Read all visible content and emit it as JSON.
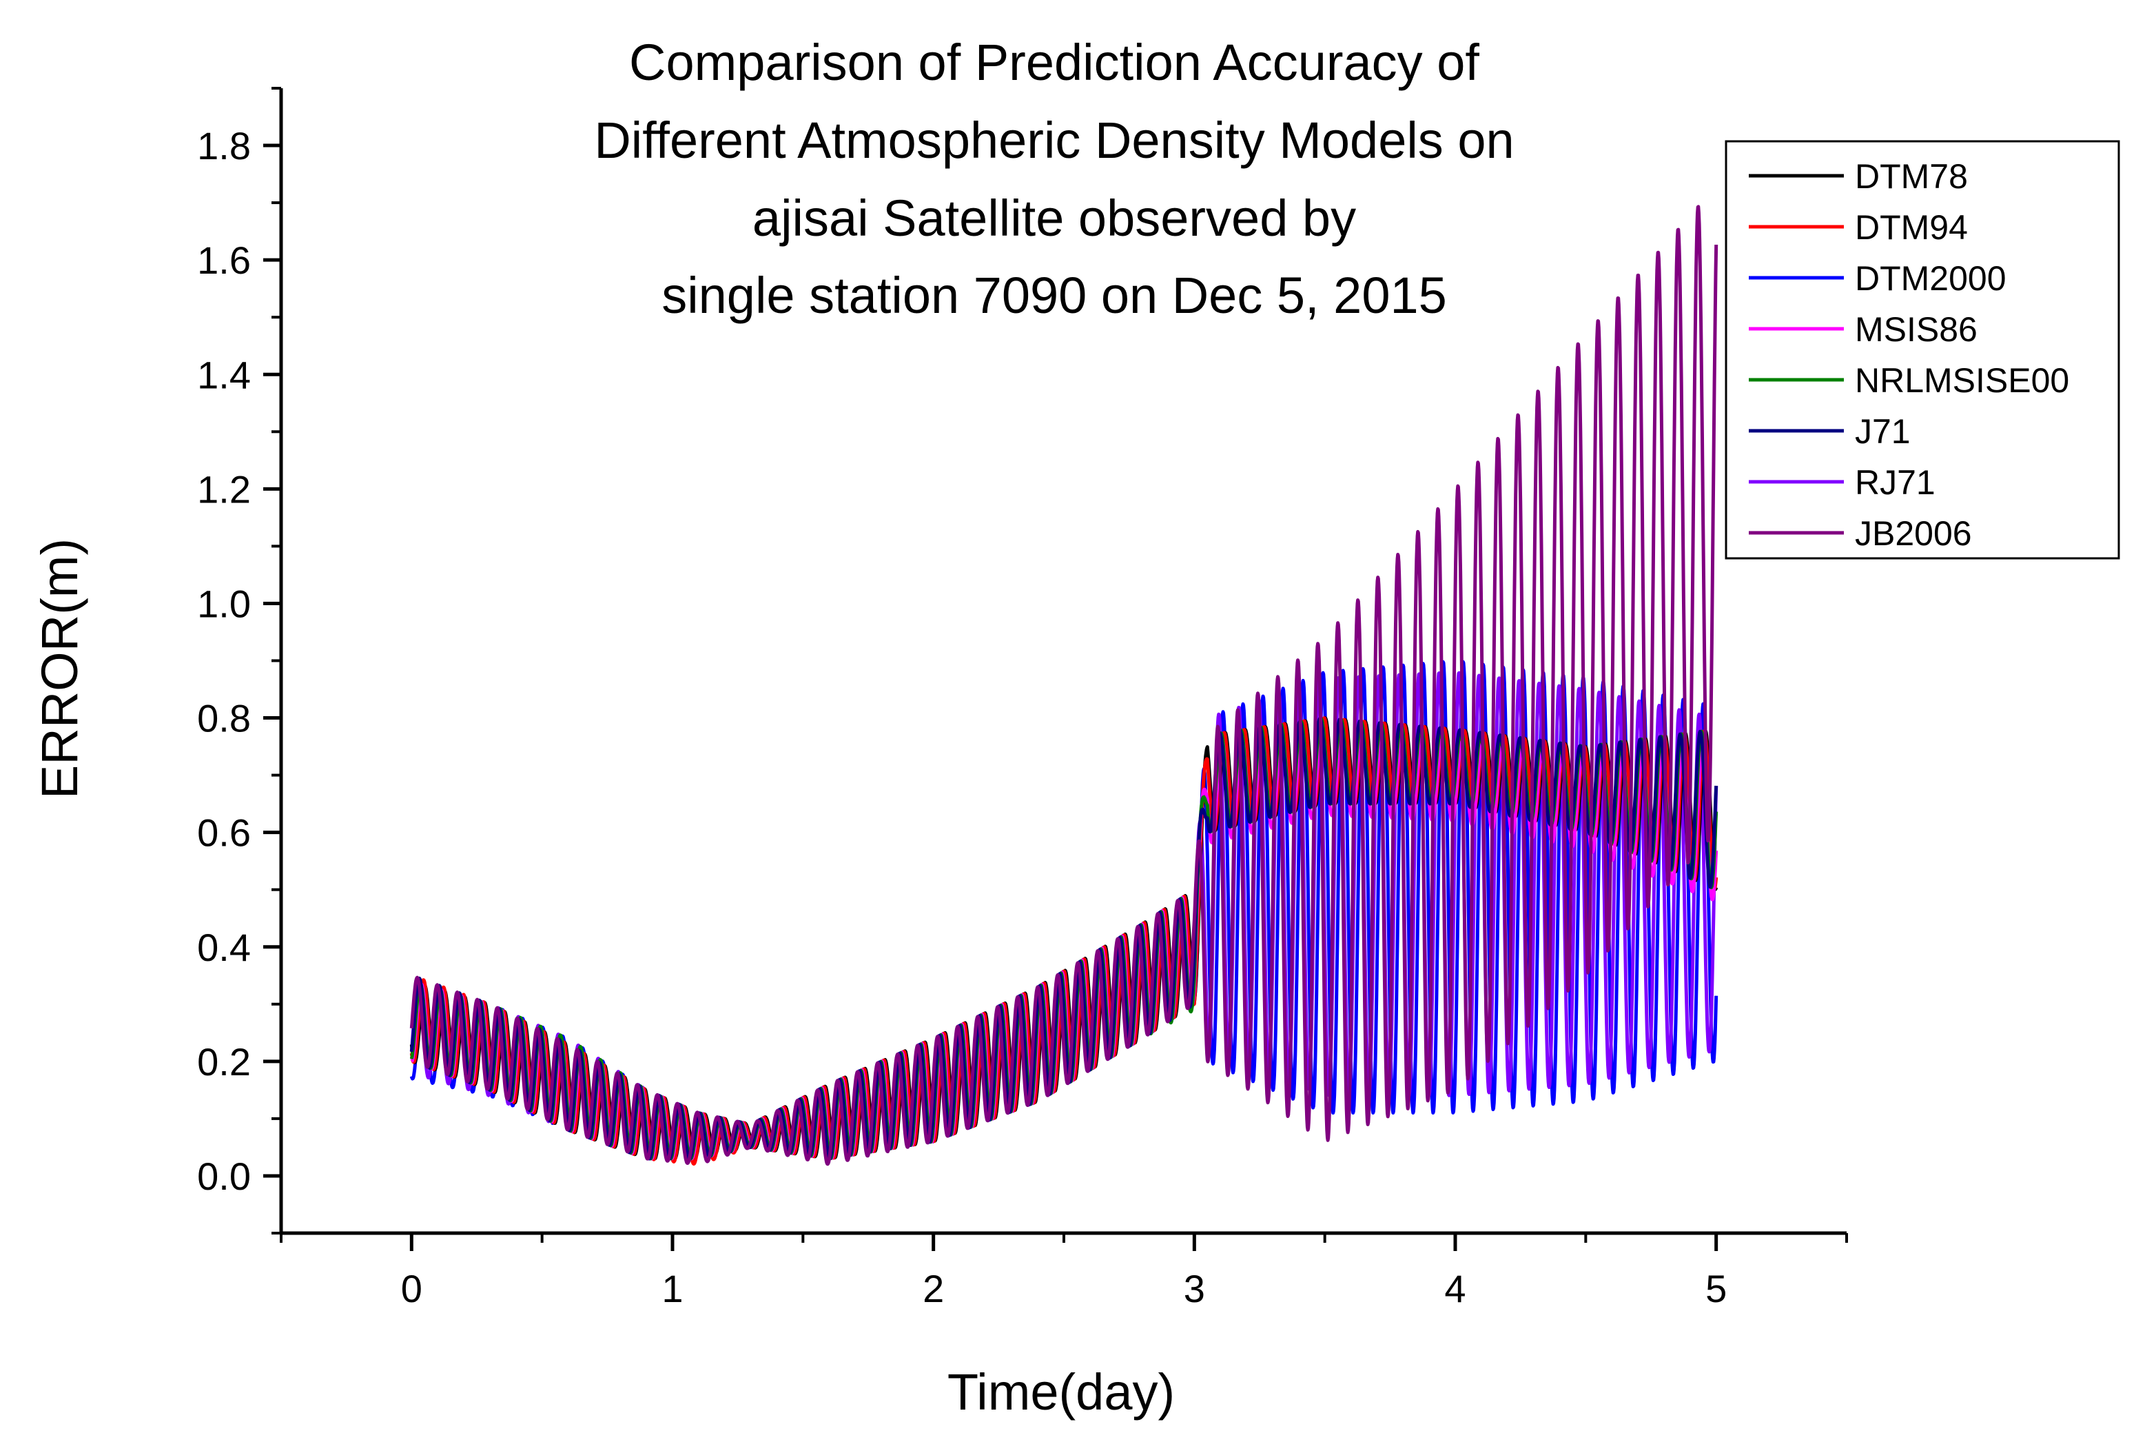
{
  "chart_data": {
    "type": "line",
    "title_lines": [
      "Comparison of Prediction Accuracy of",
      "Different Atmospheric Density Models on",
      "ajisai Satellite observed by",
      "single station 7090 on Dec 5, 2015"
    ],
    "xlabel": "Time(day)",
    "ylabel": "ERROR(m)",
    "xlim": [
      -0.5,
      5.5
    ],
    "ylim": [
      -0.1,
      1.9
    ],
    "x_ticks": [
      0,
      1,
      2,
      3,
      4,
      5
    ],
    "x_tick_labels": [
      "0",
      "1",
      "2",
      "3",
      "4",
      "5"
    ],
    "y_ticks": [
      0.0,
      0.2,
      0.4,
      0.6,
      0.8,
      1.0,
      1.2,
      1.4,
      1.6,
      1.8
    ],
    "y_tick_labels": [
      "0.0",
      "0.2",
      "0.4",
      "0.6",
      "0.8",
      "1.0",
      "1.2",
      "1.4",
      "1.6",
      "1.8"
    ],
    "legend_position": "top-right",
    "oscillation_period_day": 0.0767,
    "series": [
      {
        "name": "DTM78",
        "color": "#000000",
        "group": "upper",
        "x": [
          0,
          0.3,
          0.6,
          0.9,
          1.1,
          1.3,
          1.6,
          2.0,
          2.4,
          2.8,
          3.0,
          3.05,
          3.5,
          4.0,
          4.5,
          5.0
        ],
        "high": [
          0.34,
          0.3,
          0.23,
          0.15,
          0.11,
          0.09,
          0.16,
          0.24,
          0.33,
          0.44,
          0.5,
          0.77,
          0.8,
          0.78,
          0.75,
          0.78
        ],
        "low": [
          0.2,
          0.15,
          0.08,
          0.03,
          0.03,
          0.05,
          0.03,
          0.06,
          0.13,
          0.24,
          0.3,
          0.6,
          0.65,
          0.65,
          0.6,
          0.5
        ]
      },
      {
        "name": "DTM94",
        "color": "#ff0000",
        "group": "upper",
        "x": [
          0,
          0.3,
          0.6,
          0.9,
          1.1,
          1.3,
          1.6,
          2.0,
          2.4,
          2.8,
          3.0,
          3.05,
          3.5,
          4.0,
          4.5,
          5.0
        ],
        "high": [
          0.35,
          0.3,
          0.23,
          0.15,
          0.11,
          0.09,
          0.16,
          0.24,
          0.33,
          0.44,
          0.5,
          0.77,
          0.8,
          0.78,
          0.75,
          0.78
        ],
        "low": [
          0.2,
          0.15,
          0.08,
          0.03,
          0.02,
          0.05,
          0.03,
          0.06,
          0.13,
          0.24,
          0.3,
          0.6,
          0.65,
          0.65,
          0.6,
          0.5
        ]
      },
      {
        "name": "DTM2000",
        "color": "#0000ff",
        "group": "lower",
        "x": [
          0,
          0.3,
          0.6,
          0.9,
          1.1,
          1.3,
          1.6,
          2.0,
          2.4,
          2.8,
          3.0,
          3.05,
          3.5,
          4.0,
          4.5,
          5.0
        ],
        "high": [
          0.34,
          0.3,
          0.24,
          0.15,
          0.11,
          0.09,
          0.16,
          0.24,
          0.33,
          0.44,
          0.5,
          0.8,
          0.88,
          0.9,
          0.87,
          0.82
        ],
        "low": [
          0.17,
          0.14,
          0.08,
          0.03,
          0.03,
          0.05,
          0.03,
          0.06,
          0.13,
          0.24,
          0.3,
          0.2,
          0.11,
          0.11,
          0.13,
          0.2
        ]
      },
      {
        "name": "MSIS86",
        "color": "#ff00ff",
        "group": "upper",
        "x": [
          0,
          0.3,
          0.6,
          0.9,
          1.1,
          1.3,
          1.6,
          2.0,
          2.4,
          2.8,
          3.0,
          3.05,
          3.5,
          4.0,
          4.5,
          5.0
        ],
        "high": [
          0.34,
          0.3,
          0.23,
          0.15,
          0.11,
          0.09,
          0.16,
          0.24,
          0.33,
          0.44,
          0.5,
          0.76,
          0.78,
          0.76,
          0.73,
          0.75
        ],
        "low": [
          0.2,
          0.15,
          0.08,
          0.03,
          0.03,
          0.05,
          0.03,
          0.06,
          0.13,
          0.24,
          0.3,
          0.58,
          0.63,
          0.62,
          0.57,
          0.48
        ]
      },
      {
        "name": "NRLMSISE00",
        "color": "#008000",
        "group": "upper",
        "x": [
          0,
          0.3,
          0.6,
          0.9,
          1.1,
          1.3,
          1.6,
          2.0,
          2.4,
          2.8,
          3.0,
          3.05,
          3.5,
          4.0,
          4.5,
          5.0
        ],
        "high": [
          0.34,
          0.3,
          0.24,
          0.15,
          0.11,
          0.09,
          0.16,
          0.24,
          0.33,
          0.44,
          0.5,
          0.77,
          0.8,
          0.78,
          0.75,
          0.78
        ],
        "low": [
          0.2,
          0.15,
          0.08,
          0.03,
          0.03,
          0.05,
          0.03,
          0.06,
          0.13,
          0.24,
          0.29,
          0.6,
          0.65,
          0.65,
          0.6,
          0.5
        ]
      },
      {
        "name": "J71",
        "color": "#000080",
        "group": "upper",
        "x": [
          0,
          0.3,
          0.6,
          0.9,
          1.1,
          1.3,
          1.6,
          2.0,
          2.4,
          2.8,
          3.0,
          3.05,
          3.5,
          4.0,
          4.5,
          5.0
        ],
        "high": [
          0.35,
          0.3,
          0.23,
          0.15,
          0.11,
          0.09,
          0.16,
          0.24,
          0.33,
          0.44,
          0.5,
          0.77,
          0.8,
          0.78,
          0.75,
          0.78
        ],
        "low": [
          0.2,
          0.15,
          0.08,
          0.03,
          0.03,
          0.05,
          0.03,
          0.06,
          0.13,
          0.24,
          0.3,
          0.6,
          0.65,
          0.65,
          0.6,
          0.5
        ]
      },
      {
        "name": "RJ71",
        "color": "#8000ff",
        "group": "lower",
        "x": [
          0,
          0.3,
          0.6,
          0.9,
          1.1,
          1.3,
          1.6,
          2.0,
          2.4,
          2.8,
          3.0,
          3.05,
          3.5,
          4.0,
          4.5,
          5.0
        ],
        "high": [
          0.34,
          0.3,
          0.24,
          0.15,
          0.11,
          0.09,
          0.16,
          0.24,
          0.33,
          0.44,
          0.5,
          0.8,
          0.87,
          0.88,
          0.85,
          0.8
        ],
        "low": [
          0.18,
          0.14,
          0.08,
          0.03,
          0.03,
          0.05,
          0.03,
          0.06,
          0.13,
          0.24,
          0.3,
          0.22,
          0.14,
          0.14,
          0.16,
          0.22
        ]
      },
      {
        "name": "JB2006",
        "color": "#800080",
        "group": "top",
        "x": [
          0,
          0.3,
          0.6,
          0.9,
          1.1,
          1.3,
          1.6,
          2.0,
          2.4,
          2.8,
          3.0,
          3.05,
          3.5,
          4.0,
          4.5,
          5.0
        ],
        "high": [
          0.35,
          0.3,
          0.23,
          0.15,
          0.11,
          0.09,
          0.16,
          0.24,
          0.33,
          0.44,
          0.5,
          0.77,
          0.94,
          1.2,
          1.47,
          1.73
        ],
        "low": [
          0.2,
          0.15,
          0.08,
          0.03,
          0.02,
          0.05,
          0.02,
          0.06,
          0.13,
          0.24,
          0.3,
          0.2,
          0.06,
          0.15,
          0.35,
          0.6
        ]
      }
    ]
  }
}
